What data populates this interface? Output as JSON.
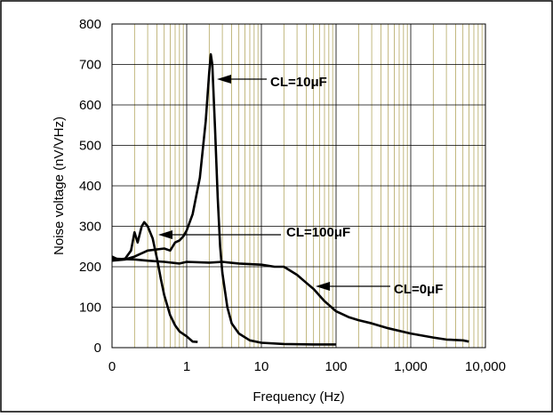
{
  "chart_data": {
    "type": "line",
    "title": "",
    "xlabel": "Frequency (Hz)",
    "ylabel": "Noise voltage (nV/VHz)",
    "x_scale": "log",
    "xlim": [
      0.1,
      10000
    ],
    "ylim": [
      0,
      800
    ],
    "y_ticks": [
      0,
      100,
      200,
      300,
      400,
      500,
      600,
      700,
      800
    ],
    "x_tick_labels": [
      {
        "x": 0.1,
        "label": "0"
      },
      {
        "x": 1,
        "label": "1"
      },
      {
        "x": 10,
        "label": "10"
      },
      {
        "x": 100,
        "label": "100"
      },
      {
        "x": 1000,
        "label": "1,000"
      },
      {
        "x": 10000,
        "label": "10,000"
      }
    ],
    "grid": true,
    "grid_color": "#a89a4a",
    "line_color": "#000000",
    "series": [
      {
        "name": "CL=100μF",
        "points": [
          [
            0.1,
            225
          ],
          [
            0.12,
            218
          ],
          [
            0.15,
            220
          ],
          [
            0.18,
            240
          ],
          [
            0.2,
            285
          ],
          [
            0.22,
            260
          ],
          [
            0.25,
            300
          ],
          [
            0.27,
            310
          ],
          [
            0.3,
            300
          ],
          [
            0.35,
            270
          ],
          [
            0.4,
            220
          ],
          [
            0.45,
            170
          ],
          [
            0.5,
            130
          ],
          [
            0.6,
            80
          ],
          [
            0.7,
            55
          ],
          [
            0.8,
            40
          ],
          [
            1.0,
            28
          ],
          [
            1.2,
            15
          ],
          [
            1.4,
            14
          ]
        ]
      },
      {
        "name": "CL=10μF",
        "points": [
          [
            0.1,
            215
          ],
          [
            0.15,
            218
          ],
          [
            0.2,
            225
          ],
          [
            0.3,
            240
          ],
          [
            0.5,
            245
          ],
          [
            0.6,
            240
          ],
          [
            0.7,
            260
          ],
          [
            0.8,
            265
          ],
          [
            0.9,
            275
          ],
          [
            1.0,
            290
          ],
          [
            1.2,
            330
          ],
          [
            1.5,
            420
          ],
          [
            1.8,
            560
          ],
          [
            2.0,
            680
          ],
          [
            2.1,
            725
          ],
          [
            2.2,
            700
          ],
          [
            2.4,
            540
          ],
          [
            2.6,
            370
          ],
          [
            2.8,
            250
          ],
          [
            3.0,
            185
          ],
          [
            3.5,
            100
          ],
          [
            4.0,
            60
          ],
          [
            5.0,
            35
          ],
          [
            7.0,
            18
          ],
          [
            10,
            12
          ],
          [
            20,
            9
          ],
          [
            50,
            8
          ],
          [
            100,
            8
          ]
        ]
      },
      {
        "name": "CL=0μF",
        "points": [
          [
            0.1,
            220
          ],
          [
            0.2,
            218
          ],
          [
            0.3,
            215
          ],
          [
            0.5,
            212
          ],
          [
            0.8,
            208
          ],
          [
            1.0,
            212
          ],
          [
            2.0,
            210
          ],
          [
            3.0,
            212
          ],
          [
            5.0,
            208
          ],
          [
            10,
            205
          ],
          [
            15,
            200
          ],
          [
            20,
            200
          ],
          [
            30,
            180
          ],
          [
            40,
            160
          ],
          [
            50,
            145
          ],
          [
            70,
            115
          ],
          [
            100,
            90
          ],
          [
            150,
            75
          ],
          [
            200,
            68
          ],
          [
            300,
            60
          ],
          [
            500,
            48
          ],
          [
            1000,
            35
          ],
          [
            2000,
            25
          ],
          [
            3000,
            20
          ],
          [
            5000,
            18
          ],
          [
            6000,
            15
          ]
        ]
      }
    ],
    "annotations": [
      {
        "text": "CL=10μF"
      },
      {
        "text": "CL=100μF"
      },
      {
        "text": "CL=0μF"
      }
    ]
  }
}
